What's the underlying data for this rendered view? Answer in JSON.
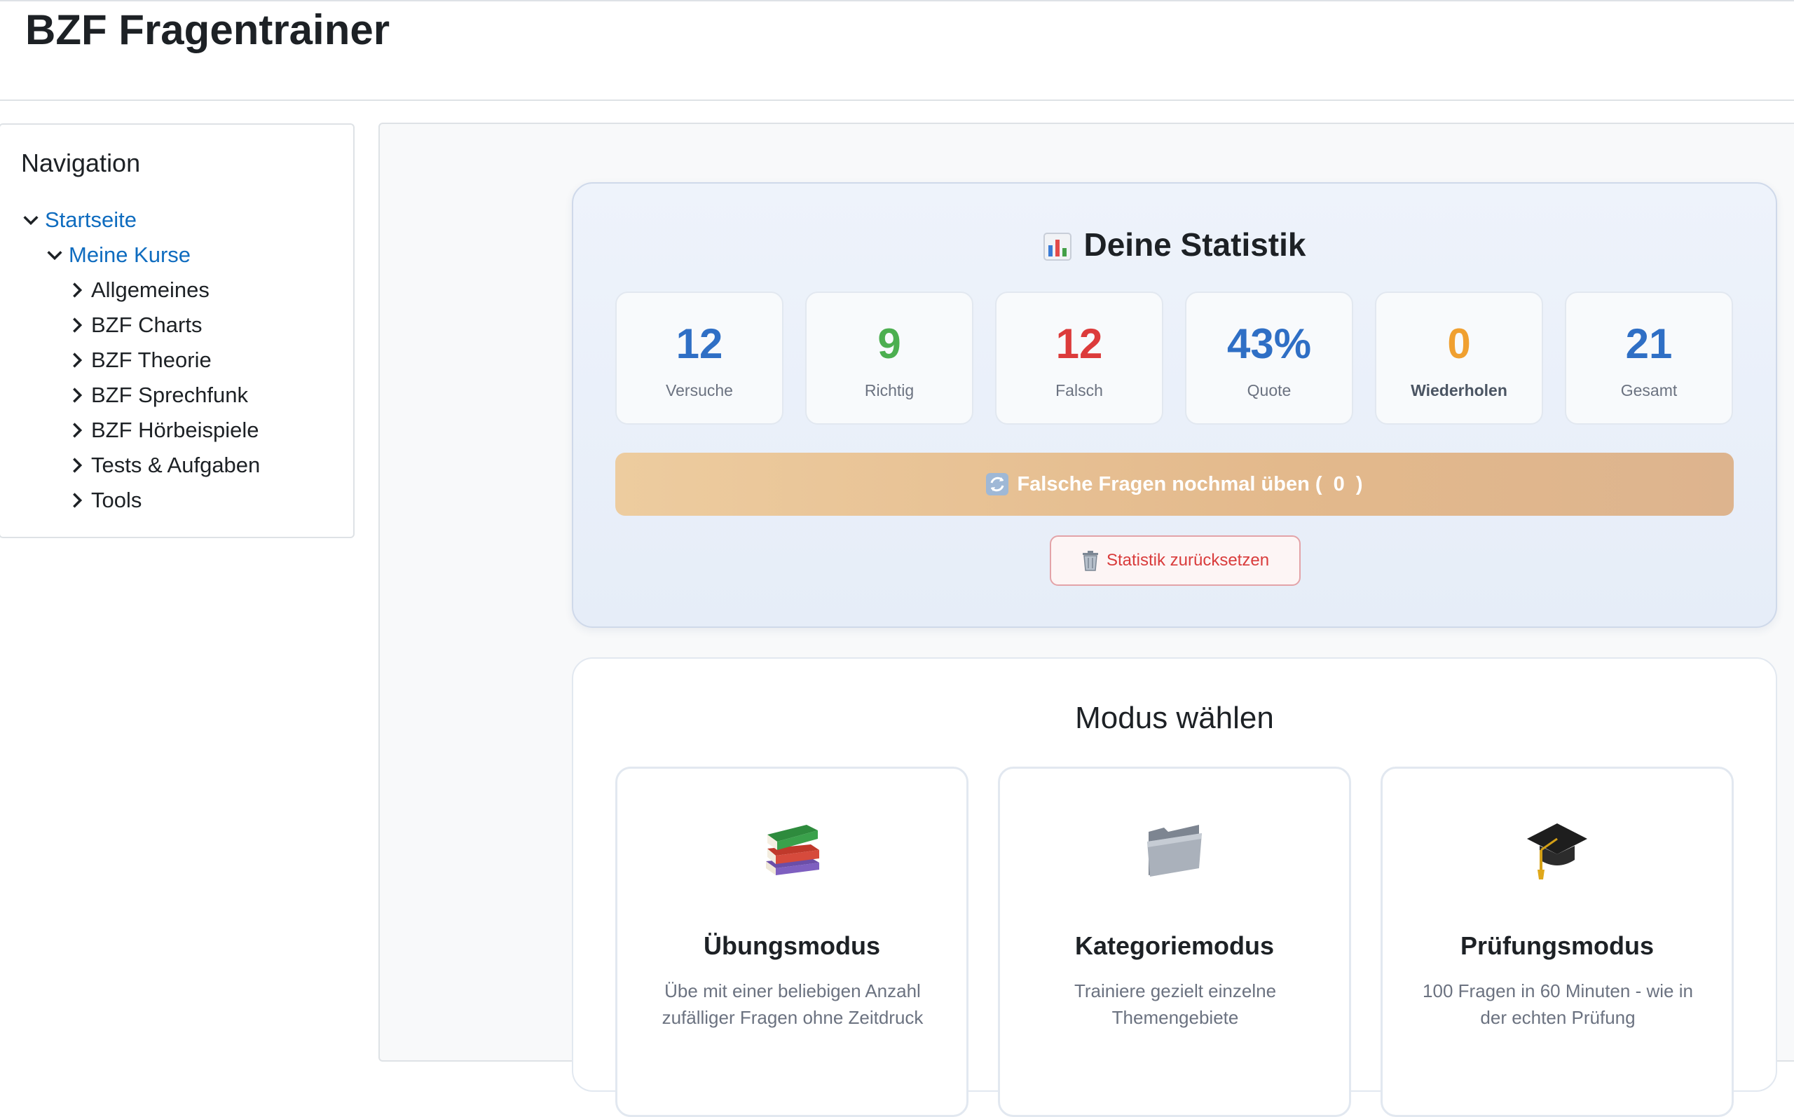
{
  "header": {
    "title": "BZF Fragentrainer"
  },
  "navigation": {
    "title": "Navigation",
    "items": [
      {
        "label": "Startseite",
        "expanded": true,
        "link": true
      },
      {
        "label": "Meine Kurse",
        "expanded": true,
        "link": true
      },
      {
        "label": "Allgemeines",
        "expanded": false,
        "link": false
      },
      {
        "label": "BZF Charts",
        "expanded": false,
        "link": false
      },
      {
        "label": "BZF Theorie",
        "expanded": false,
        "link": false
      },
      {
        "label": "BZF Sprechfunk",
        "expanded": false,
        "link": false
      },
      {
        "label": "BZF Hörbeispiele",
        "expanded": false,
        "link": false
      },
      {
        "label": "Tests & Aufgaben",
        "expanded": false,
        "link": false
      },
      {
        "label": "Tools",
        "expanded": false,
        "link": false
      }
    ]
  },
  "statistics": {
    "title": "Deine Statistik",
    "tiles": [
      {
        "value": "12",
        "label": "Versuche",
        "color": "#2f6fc5"
      },
      {
        "value": "9",
        "label": "Richtig",
        "color": "#4caf50"
      },
      {
        "value": "12",
        "label": "Falsch",
        "color": "#dc3b3b"
      },
      {
        "value": "43%",
        "label": "Quote",
        "color": "#2f6fc5"
      },
      {
        "value": "0",
        "label": "Wiederholen",
        "color": "#f0a030"
      },
      {
        "value": "21",
        "label": "Gesamt",
        "color": "#2f6fc5"
      }
    ],
    "retry_label": "Falsche Fragen nochmal üben (  0  )",
    "reset_label": "Statistik zurücksetzen"
  },
  "modes": {
    "title": "Modus wählen",
    "items": [
      {
        "icon": "books-icon",
        "title": "Übungsmodus",
        "description": "Übe mit einer beliebigen Anzahl zufälliger Fragen ohne Zeitdruck"
      },
      {
        "icon": "folder-icon",
        "title": "Kategoriemodus",
        "description": "Trainiere gezielt einzelne Themengebiete"
      },
      {
        "icon": "graduation-cap-icon",
        "title": "Prüfungsmodus",
        "description": "100 Fragen in 60 Minuten - wie in der echten Prüfung"
      }
    ]
  }
}
